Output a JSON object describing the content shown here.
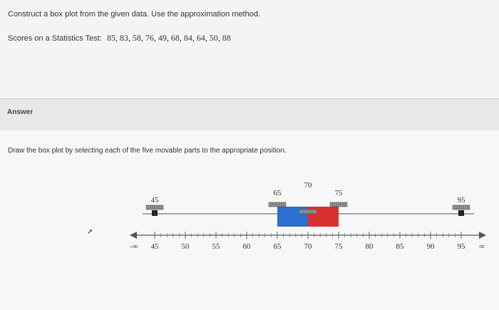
{
  "question": {
    "instruction": "Construct a box plot from the given data. Use the approximation method.",
    "scores_label": "Scores on a Statistics Test:",
    "scores_values": "85, 83, 58, 76, 49, 68, 84, 64, 50, 88"
  },
  "answer": {
    "heading": "Answer",
    "draw_instruction": "Draw the box plot by selecting each of the five movable parts to the appropriate position."
  },
  "box_plot": {
    "min": 45,
    "q1": 65,
    "median": 70,
    "q3": 75,
    "max": 95,
    "labels": {
      "min": "45",
      "q1": "65",
      "median": "70",
      "q3": "75",
      "max": "95"
    },
    "colors": {
      "left_box": "#2b6fd1",
      "right_box": "#d93030",
      "handle": "#333333",
      "whisker": "#555555"
    }
  },
  "number_line": {
    "ticks": [
      "45",
      "50",
      "55",
      "60",
      "65",
      "70",
      "75",
      "80",
      "85",
      "90",
      "95"
    ],
    "left_label": "-∞",
    "right_label": "∞"
  }
}
